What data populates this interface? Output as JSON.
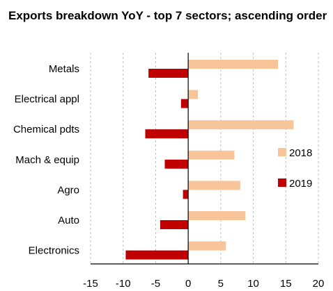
{
  "chart_data": {
    "type": "bar",
    "orientation": "horizontal",
    "title": "Exports breakdown YoY - top 7 sectors; ascending order",
    "categories": [
      "Metals",
      "Electrical appl",
      "Chemical pdts",
      "Mach & equip",
      "Agro",
      "Auto",
      "Electronics"
    ],
    "series": [
      {
        "name": "2018",
        "color": "#F8C59A",
        "values": [
          13.8,
          1.5,
          16.2,
          7.1,
          8.0,
          8.8,
          5.8
        ]
      },
      {
        "name": "2019",
        "color": "#C00000",
        "values": [
          -6.1,
          -1.1,
          -6.6,
          -3.6,
          -0.8,
          -4.3,
          -9.6
        ]
      }
    ],
    "xlim": [
      -15,
      20
    ],
    "xticks": [
      -15,
      -10,
      -5,
      0,
      5,
      10,
      15,
      20
    ],
    "grid": "vertical dashed",
    "legend_position": "right"
  }
}
